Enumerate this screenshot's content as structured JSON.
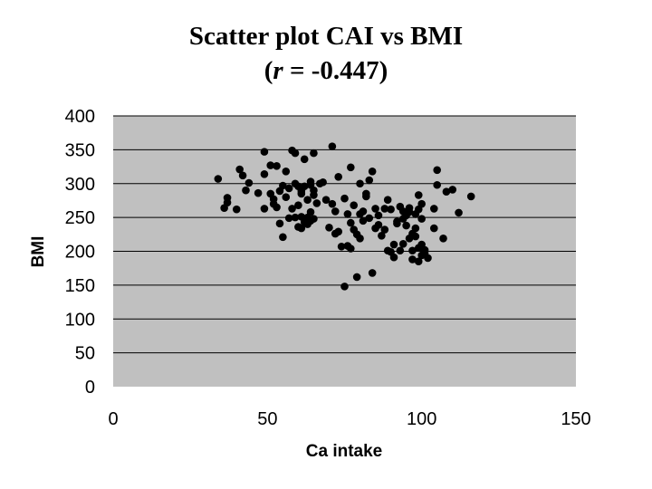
{
  "chart_data": {
    "type": "scatter",
    "title_line1": "Scatter plot CAI vs BMI",
    "title_line2_prefix": "(",
    "title_line2_r": "r",
    "title_line2_suffix": " = -0.447)",
    "xlabel": "Ca intake",
    "ylabel": "BMI",
    "xlim": [
      0,
      150
    ],
    "ylim": [
      0,
      400
    ],
    "xticks": [
      0,
      50,
      100,
      150
    ],
    "yticks": [
      0,
      50,
      100,
      150,
      200,
      250,
      300,
      350,
      400
    ],
    "grid": "horizontal",
    "plot_background": "#c0c0c0",
    "marker_color": "#000000",
    "points": [
      [
        34,
        307
      ],
      [
        36,
        264
      ],
      [
        37,
        272
      ],
      [
        37,
        279
      ],
      [
        40,
        262
      ],
      [
        41,
        321
      ],
      [
        42,
        312
      ],
      [
        43,
        290
      ],
      [
        44,
        301
      ],
      [
        47,
        286
      ],
      [
        49,
        347
      ],
      [
        49,
        314
      ],
      [
        49,
        263
      ],
      [
        51,
        285
      ],
      [
        51,
        327
      ],
      [
        52,
        277
      ],
      [
        52,
        270
      ],
      [
        53,
        326
      ],
      [
        53,
        265
      ],
      [
        54,
        289
      ],
      [
        54,
        241
      ],
      [
        55,
        297
      ],
      [
        55,
        221
      ],
      [
        56,
        318
      ],
      [
        56,
        280
      ],
      [
        57,
        293
      ],
      [
        57,
        249
      ],
      [
        58,
        349
      ],
      [
        58,
        263
      ],
      [
        59,
        345
      ],
      [
        59,
        300
      ],
      [
        59,
        250
      ],
      [
        60,
        236
      ],
      [
        60,
        296
      ],
      [
        60,
        268
      ],
      [
        61,
        234
      ],
      [
        61,
        285
      ],
      [
        61,
        289
      ],
      [
        61,
        251
      ],
      [
        62,
        336
      ],
      [
        62,
        296
      ],
      [
        62,
        243
      ],
      [
        63,
        240
      ],
      [
        63,
        276
      ],
      [
        63,
        250
      ],
      [
        64,
        303
      ],
      [
        64,
        258
      ],
      [
        64,
        298
      ],
      [
        64,
        245
      ],
      [
        65,
        345
      ],
      [
        65,
        283
      ],
      [
        65,
        290
      ],
      [
        65,
        248
      ],
      [
        66,
        271
      ],
      [
        67,
        300
      ],
      [
        68,
        302
      ],
      [
        69,
        276
      ],
      [
        70,
        235
      ],
      [
        71,
        355
      ],
      [
        71,
        270
      ],
      [
        72,
        259
      ],
      [
        72,
        226
      ],
      [
        73,
        310
      ],
      [
        73,
        229
      ],
      [
        74,
        207
      ],
      [
        75,
        148
      ],
      [
        75,
        278
      ],
      [
        76,
        208
      ],
      [
        76,
        255
      ],
      [
        77,
        324
      ],
      [
        77,
        242
      ],
      [
        77,
        204
      ],
      [
        78,
        268
      ],
      [
        78,
        232
      ],
      [
        79,
        225
      ],
      [
        79,
        162
      ],
      [
        80,
        300
      ],
      [
        80,
        255
      ],
      [
        80,
        219
      ],
      [
        81,
        259
      ],
      [
        81,
        245
      ],
      [
        82,
        285
      ],
      [
        82,
        281
      ],
      [
        83,
        249
      ],
      [
        83,
        305
      ],
      [
        84,
        168
      ],
      [
        84,
        318
      ],
      [
        85,
        263
      ],
      [
        85,
        234
      ],
      [
        86,
        253
      ],
      [
        86,
        239
      ],
      [
        87,
        223
      ],
      [
        88,
        232
      ],
      [
        88,
        263
      ],
      [
        89,
        201
      ],
      [
        89,
        276
      ],
      [
        90,
        262
      ],
      [
        90,
        199
      ],
      [
        91,
        210
      ],
      [
        91,
        191
      ],
      [
        92,
        241
      ],
      [
        92,
        244
      ],
      [
        93,
        201
      ],
      [
        93,
        266
      ],
      [
        94,
        259
      ],
      [
        94,
        248
      ],
      [
        94,
        211
      ],
      [
        95,
        253
      ],
      [
        95,
        238
      ],
      [
        96,
        219
      ],
      [
        96,
        264
      ],
      [
        96,
        258
      ],
      [
        97,
        226
      ],
      [
        97,
        201
      ],
      [
        97,
        188
      ],
      [
        98,
        255
      ],
      [
        98,
        234
      ],
      [
        98,
        222
      ],
      [
        99,
        283
      ],
      [
        99,
        262
      ],
      [
        99,
        205
      ],
      [
        99,
        185
      ],
      [
        100,
        248
      ],
      [
        100,
        210
      ],
      [
        100,
        194
      ],
      [
        100,
        270
      ],
      [
        101,
        202
      ],
      [
        101,
        197
      ],
      [
        102,
        190
      ],
      [
        104,
        263
      ],
      [
        104,
        234
      ],
      [
        105,
        298
      ],
      [
        105,
        320
      ],
      [
        107,
        219
      ],
      [
        108,
        288
      ],
      [
        110,
        291
      ],
      [
        112,
        257
      ],
      [
        116,
        281
      ]
    ]
  }
}
